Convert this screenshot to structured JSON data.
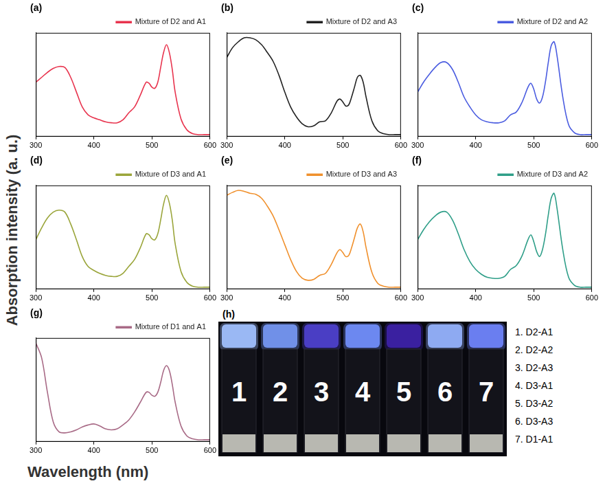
{
  "figure": {
    "x_label": "Wavelength (nm)",
    "y_label": "Absorption intensity (a. u.)"
  },
  "chart_data": [
    {
      "type": "line",
      "panel": "(a)",
      "legend": "top-right",
      "grid": false,
      "tick_labels": "x",
      "xlim": [
        300,
        600
      ],
      "xticks": [
        300,
        400,
        500,
        600
      ],
      "ylim": [
        0,
        1.05
      ],
      "x": [
        300,
        310,
        320,
        330,
        340,
        350,
        360,
        370,
        380,
        390,
        400,
        410,
        420,
        430,
        440,
        450,
        460,
        470,
        480,
        490,
        495,
        500,
        505,
        510,
        515,
        520,
        525,
        530,
        535,
        540,
        550,
        560,
        570,
        580,
        590,
        600
      ],
      "series": [
        {
          "name": "Mixture of D2 and A1",
          "color": "#e8344e",
          "marker": "none",
          "line_style": "solid",
          "values": [
            0.55,
            0.6,
            0.65,
            0.69,
            0.71,
            0.7,
            0.6,
            0.45,
            0.3,
            0.22,
            0.19,
            0.17,
            0.15,
            0.14,
            0.14,
            0.17,
            0.24,
            0.3,
            0.42,
            0.55,
            0.54,
            0.5,
            0.49,
            0.55,
            0.7,
            0.85,
            0.93,
            0.85,
            0.68,
            0.45,
            0.18,
            0.07,
            0.03,
            0.02,
            0.02,
            0.02
          ]
        }
      ]
    },
    {
      "type": "line",
      "panel": "(b)",
      "legend": "top-right",
      "grid": false,
      "tick_labels": "x",
      "xlim": [
        300,
        600
      ],
      "xticks": [
        300,
        400,
        500,
        600
      ],
      "ylim": [
        0,
        1.05
      ],
      "x": [
        300,
        310,
        320,
        330,
        340,
        350,
        360,
        370,
        380,
        390,
        400,
        410,
        420,
        430,
        440,
        450,
        460,
        470,
        480,
        490,
        495,
        500,
        505,
        510,
        515,
        520,
        525,
        530,
        535,
        540,
        550,
        560,
        570,
        580,
        590,
        600
      ],
      "series": [
        {
          "name": "Mixture of D2 and A3",
          "color": "#222222",
          "marker": "none",
          "line_style": "solid",
          "values": [
            0.8,
            0.9,
            0.96,
            1.0,
            1.0,
            0.98,
            0.93,
            0.85,
            0.76,
            0.62,
            0.45,
            0.3,
            0.2,
            0.13,
            0.1,
            0.11,
            0.15,
            0.16,
            0.24,
            0.36,
            0.38,
            0.35,
            0.31,
            0.32,
            0.4,
            0.5,
            0.6,
            0.62,
            0.55,
            0.4,
            0.16,
            0.06,
            0.03,
            0.02,
            0.02,
            0.02
          ]
        }
      ]
    },
    {
      "type": "line",
      "panel": "(c)",
      "legend": "top-right",
      "grid": false,
      "tick_labels": "x",
      "xlim": [
        300,
        600
      ],
      "xticks": [
        300,
        400,
        500,
        600
      ],
      "ylim": [
        0,
        1.05
      ],
      "x": [
        300,
        310,
        320,
        330,
        340,
        350,
        360,
        370,
        380,
        390,
        400,
        410,
        420,
        430,
        440,
        450,
        460,
        470,
        480,
        490,
        495,
        500,
        505,
        510,
        515,
        520,
        525,
        530,
        535,
        540,
        550,
        560,
        570,
        580,
        590,
        600
      ],
      "series": [
        {
          "name": "Mixture of D2 and A2",
          "color": "#4a5ce0",
          "marker": "none",
          "line_style": "solid",
          "values": [
            0.45,
            0.55,
            0.63,
            0.7,
            0.75,
            0.75,
            0.68,
            0.55,
            0.4,
            0.3,
            0.22,
            0.17,
            0.15,
            0.14,
            0.14,
            0.16,
            0.22,
            0.25,
            0.35,
            0.5,
            0.54,
            0.48,
            0.38,
            0.34,
            0.4,
            0.55,
            0.75,
            0.92,
            0.96,
            0.82,
            0.4,
            0.12,
            0.04,
            0.02,
            0.02,
            0.02
          ]
        }
      ]
    },
    {
      "type": "line",
      "panel": "(d)",
      "legend": "top-right",
      "grid": false,
      "tick_labels": "x",
      "xlim": [
        300,
        600
      ],
      "xticks": [
        300,
        400,
        500,
        600
      ],
      "ylim": [
        0,
        1.05
      ],
      "x": [
        300,
        310,
        320,
        330,
        340,
        350,
        360,
        370,
        380,
        390,
        400,
        410,
        420,
        430,
        440,
        450,
        460,
        470,
        480,
        490,
        495,
        500,
        505,
        510,
        515,
        520,
        525,
        530,
        535,
        540,
        550,
        560,
        570,
        580,
        590,
        600
      ],
      "series": [
        {
          "name": "Mixture of D3 and A1",
          "color": "#9aa53a",
          "marker": "none",
          "line_style": "solid",
          "values": [
            0.5,
            0.62,
            0.72,
            0.78,
            0.8,
            0.78,
            0.66,
            0.5,
            0.33,
            0.23,
            0.19,
            0.16,
            0.14,
            0.13,
            0.13,
            0.16,
            0.23,
            0.3,
            0.42,
            0.56,
            0.55,
            0.51,
            0.5,
            0.56,
            0.7,
            0.86,
            0.95,
            0.87,
            0.7,
            0.46,
            0.18,
            0.07,
            0.03,
            0.02,
            0.02,
            0.02
          ]
        }
      ]
    },
    {
      "type": "line",
      "panel": "(e)",
      "legend": "top-right",
      "grid": false,
      "tick_labels": "x",
      "xlim": [
        300,
        600
      ],
      "xticks": [
        300,
        400,
        500,
        600
      ],
      "ylim": [
        0,
        1.05
      ],
      "x": [
        300,
        310,
        320,
        330,
        340,
        350,
        360,
        370,
        380,
        390,
        400,
        410,
        420,
        430,
        440,
        450,
        460,
        470,
        480,
        490,
        495,
        500,
        505,
        510,
        515,
        520,
        525,
        530,
        535,
        540,
        550,
        560,
        570,
        580,
        590,
        600
      ],
      "series": [
        {
          "name": "Mixture of D3 and A3",
          "color": "#f0902c",
          "marker": "none",
          "line_style": "solid",
          "values": [
            0.95,
            0.98,
            1.0,
            0.99,
            0.97,
            0.96,
            0.92,
            0.84,
            0.74,
            0.6,
            0.45,
            0.3,
            0.18,
            0.11,
            0.09,
            0.1,
            0.14,
            0.16,
            0.25,
            0.37,
            0.4,
            0.37,
            0.33,
            0.34,
            0.42,
            0.52,
            0.62,
            0.66,
            0.58,
            0.42,
            0.17,
            0.06,
            0.03,
            0.02,
            0.02,
            0.02
          ]
        }
      ]
    },
    {
      "type": "line",
      "panel": "(f)",
      "legend": "top-right",
      "grid": false,
      "tick_labels": "x",
      "xlim": [
        300,
        600
      ],
      "xticks": [
        300,
        400,
        500,
        600
      ],
      "ylim": [
        0,
        1.05
      ],
      "x": [
        300,
        310,
        320,
        330,
        340,
        350,
        360,
        370,
        380,
        390,
        400,
        410,
        420,
        430,
        440,
        450,
        460,
        470,
        480,
        490,
        495,
        500,
        505,
        510,
        515,
        520,
        525,
        530,
        535,
        540,
        550,
        560,
        570,
        580,
        590,
        600
      ],
      "series": [
        {
          "name": "Mixture of D3 and A2",
          "color": "#2e9e88",
          "marker": "none",
          "line_style": "solid",
          "values": [
            0.5,
            0.6,
            0.68,
            0.74,
            0.78,
            0.78,
            0.7,
            0.56,
            0.4,
            0.28,
            0.2,
            0.15,
            0.12,
            0.11,
            0.11,
            0.13,
            0.2,
            0.24,
            0.34,
            0.5,
            0.55,
            0.48,
            0.38,
            0.33,
            0.4,
            0.55,
            0.75,
            0.92,
            0.97,
            0.82,
            0.4,
            0.12,
            0.04,
            0.02,
            0.02,
            0.02
          ]
        }
      ]
    },
    {
      "type": "line",
      "panel": "(g)",
      "legend": "top-right",
      "grid": false,
      "tick_labels": "x",
      "xlim": [
        300,
        600
      ],
      "xticks": [
        300,
        400,
        500,
        600
      ],
      "ylim": [
        0,
        1.05
      ],
      "x": [
        300,
        310,
        320,
        330,
        340,
        350,
        360,
        370,
        380,
        390,
        400,
        410,
        420,
        430,
        440,
        450,
        460,
        470,
        480,
        490,
        495,
        500,
        505,
        510,
        515,
        520,
        525,
        530,
        535,
        540,
        550,
        560,
        570,
        580,
        590,
        600
      ],
      "series": [
        {
          "name": "Mixture of D1 and A1",
          "color": "#a86a86",
          "marker": "none",
          "line_style": "solid",
          "values": [
            1.0,
            0.85,
            0.5,
            0.2,
            0.1,
            0.09,
            0.1,
            0.12,
            0.15,
            0.17,
            0.18,
            0.16,
            0.13,
            0.12,
            0.13,
            0.17,
            0.22,
            0.3,
            0.4,
            0.5,
            0.5,
            0.47,
            0.46,
            0.5,
            0.6,
            0.72,
            0.77,
            0.72,
            0.58,
            0.4,
            0.16,
            0.06,
            0.03,
            0.02,
            0.02,
            0.02
          ]
        }
      ]
    }
  ],
  "photo": {
    "panel": "(h)",
    "vial_labels": [
      "1",
      "2",
      "3",
      "4",
      "5",
      "6",
      "7"
    ],
    "colors": [
      "#9ab8f4",
      "#7090e8",
      "#4a3ec4",
      "#6c88f0",
      "#3a20a0",
      "#8eaaf2",
      "#6a7ef0"
    ],
    "key": [
      "1. D2-A1",
      "2. D2-A2",
      "3. D2-A3",
      "4. D3-A1",
      "5. D3-A2",
      "6. D3-A3",
      "7. D1-A1"
    ]
  }
}
